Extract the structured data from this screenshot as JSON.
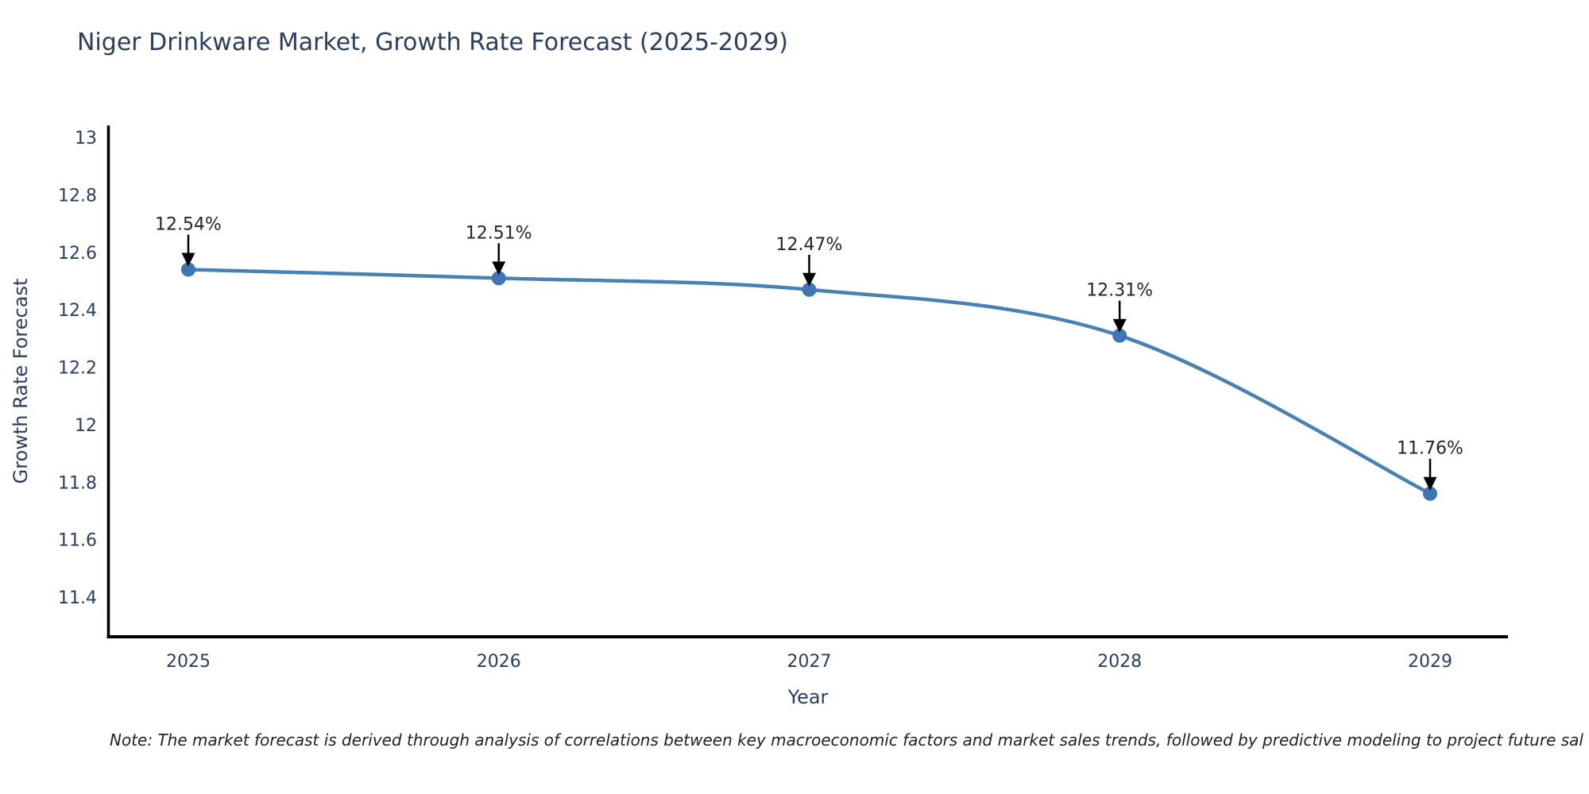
{
  "chart": {
    "title": "Niger Drinkware Market, Growth Rate Forecast (2025-2029)",
    "note": "Note: The market forecast is derived through analysis of correlations between key macroeconomic factors and market sales trends, followed by predictive modeling to project future sal"
  },
  "chart_data": {
    "type": "line",
    "title": "Niger Drinkware Market, Growth Rate Forecast (2025-2029)",
    "x": [
      "2025",
      "2026",
      "2027",
      "2028",
      "2029"
    ],
    "series": [
      {
        "name": "Growth Rate Forecast",
        "values": [
          12.54,
          12.51,
          12.47,
          12.31,
          11.76
        ],
        "point_labels": [
          "12.54%",
          "12.51%",
          "12.47%",
          "12.31%",
          "11.76%"
        ]
      }
    ],
    "xlabel": "Year",
    "ylabel": "Growth Rate Forecast",
    "ylim": [
      11.27,
      13.04
    ],
    "yticks": [
      {
        "value": 13,
        "label": "13"
      },
      {
        "value": 12.8,
        "label": "12.8"
      },
      {
        "value": 12.6,
        "label": "12.6"
      },
      {
        "value": 12.4,
        "label": "12.4"
      },
      {
        "value": 12.2,
        "label": "12.2"
      },
      {
        "value": 12,
        "label": "12"
      },
      {
        "value": 11.8,
        "label": "11.8"
      },
      {
        "value": 11.6,
        "label": "11.6"
      },
      {
        "value": 11.4,
        "label": "11.4"
      }
    ],
    "grid": false,
    "legend_position": "none",
    "line_shape": "spline",
    "colors": {
      "line": "#4682b4",
      "marker": "#3e76b5",
      "axis": "#000000",
      "tick_label": "#2a3f5f",
      "axis_title": "#2a3f5f",
      "chart_title": "#2a3f5f",
      "annotation_text": "#252525",
      "annotation_arrow": "#000000",
      "background": "#ffffff"
    }
  }
}
